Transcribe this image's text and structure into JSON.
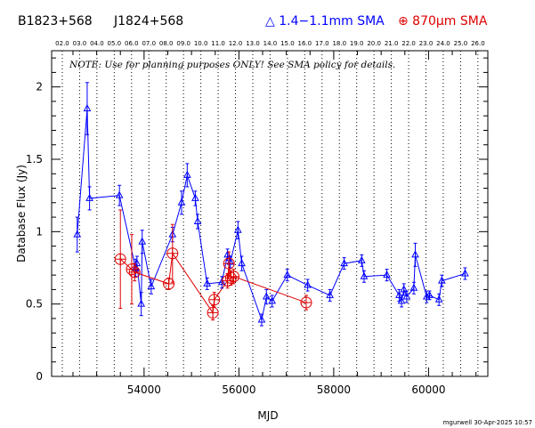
{
  "header": {
    "source_name": "B1823+568",
    "source_alias": "J1824+568",
    "legend_blue": "△ 1.4−1.1mm SMA",
    "legend_red": "⊕ 870μm SMA",
    "blue_color": "#0000ff",
    "red_color": "#dd0000"
  },
  "note": "NOTE: Use for planning purposes ONLY!  See SMA policy for details.",
  "credit": "mgurwell 30-Apr-2025 10:57",
  "chart_data": {
    "type": "scatter",
    "xlabel": "MJD",
    "ylabel": "Database Flux (Jy)",
    "xlim": [
      52050,
      61250
    ],
    "ylim": [
      0,
      2.25
    ],
    "x_ticks": [
      54000,
      56000,
      58000,
      60000
    ],
    "x_tick_labels": [
      "54000",
      "56000",
      "58000",
      "60000"
    ],
    "y_ticks": [
      0,
      0.5,
      1,
      1.5,
      2
    ],
    "y_tick_labels": [
      "0",
      "0.5",
      "1",
      "1.5",
      "2"
    ],
    "year_labels": [
      "02.0",
      "03.0",
      "04.0",
      "05.0",
      "06.0",
      "07.0",
      "08.0",
      "09.0",
      "10.0",
      "11.0",
      "12.0",
      "13.0",
      "14.0",
      "15.0",
      "16.0",
      "17.0",
      "18.0",
      "19.0",
      "20.0",
      "21.0",
      "22.0",
      "23.0",
      "24.0",
      "25.0",
      "26.0"
    ],
    "year_mjd": [
      52275,
      52640,
      53005,
      53371,
      53736,
      54101,
      54466,
      54832,
      55197,
      55562,
      55927,
      56293,
      56658,
      57023,
      57388,
      57754,
      58119,
      58484,
      58849,
      59215,
      59580,
      59945,
      60310,
      60676,
      61041
    ],
    "series": [
      {
        "name": "1.4−1.1mm SMA",
        "color": "#0000ff",
        "marker": "triangle",
        "connected": true,
        "x": [
          52590,
          52800,
          52850,
          53480,
          53820,
          53850,
          53940,
          53960,
          54150,
          54600,
          54790,
          54910,
          55080,
          55130,
          55330,
          55640,
          55760,
          55820,
          55980,
          56060,
          56480,
          56580,
          56700,
          57020,
          57450,
          57920,
          58220,
          58590,
          58640,
          59120,
          59380,
          59430,
          59480,
          59540,
          59690,
          59720,
          59960,
          60020,
          60220,
          60280,
          60770
        ],
        "y": [
          0.98,
          1.85,
          1.23,
          1.25,
          0.75,
          0.78,
          0.5,
          0.93,
          0.62,
          0.98,
          1.2,
          1.39,
          1.23,
          1.07,
          0.64,
          0.65,
          0.84,
          0.79,
          1.01,
          0.78,
          0.39,
          0.55,
          0.52,
          0.7,
          0.63,
          0.56,
          0.78,
          0.8,
          0.69,
          0.7,
          0.56,
          0.52,
          0.6,
          0.55,
          0.61,
          0.84,
          0.55,
          0.56,
          0.53,
          0.66,
          0.71
        ],
        "err": [
          0.12,
          0.18,
          0.08,
          0.07,
          0.06,
          0.05,
          0.08,
          0.08,
          0.05,
          0.05,
          0.08,
          0.08,
          0.05,
          0.05,
          0.04,
          0.04,
          0.04,
          0.04,
          0.06,
          0.05,
          0.04,
          0.05,
          0.04,
          0.04,
          0.04,
          0.04,
          0.04,
          0.04,
          0.04,
          0.04,
          0.04,
          0.04,
          0.04,
          0.04,
          0.04,
          0.08,
          0.04,
          0.03,
          0.04,
          0.04,
          0.04
        ]
      },
      {
        "name": "870μm SMA",
        "color": "#dd0000",
        "marker": "circle-plus",
        "connected": true,
        "x": [
          53500,
          53740,
          53800,
          54520,
          54600,
          55450,
          55480,
          55760,
          55790,
          55830,
          55890,
          57420
        ],
        "y": [
          0.81,
          0.74,
          0.72,
          0.64,
          0.85,
          0.44,
          0.53,
          0.66,
          0.78,
          0.68,
          0.69,
          0.51
        ],
        "err": [
          0.34,
          0.24,
          0.06,
          0.04,
          0.2,
          0.05,
          0.05,
          0.05,
          0.08,
          0.05,
          0.05,
          0.05
        ]
      }
    ]
  }
}
